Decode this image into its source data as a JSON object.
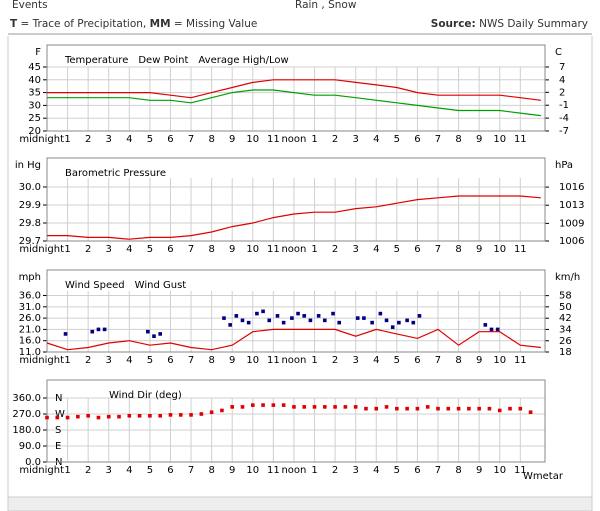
{
  "header": {
    "events_label": "Events",
    "events_value": "Rain , Snow",
    "note_key_1": "T",
    "note_text_1": "= Trace of Precipitation,",
    "note_key_2": "MM",
    "note_text_2": "= Missing Value",
    "source_label": "Source:",
    "source_value": "NWS Daily Summary"
  },
  "chart_data": [
    {
      "type": "line",
      "y_unit": "F",
      "y2_unit": "C",
      "xlim": [
        0,
        24.2
      ],
      "xticks": [
        {
          "value": 0,
          "label": "midnight"
        },
        1,
        2,
        3,
        4,
        5,
        6,
        7,
        8,
        9,
        10,
        11,
        {
          "value": 12,
          "label": "noon"
        },
        {
          "value": 13,
          "label": "1"
        },
        {
          "value": 14,
          "label": "2"
        },
        {
          "value": 15,
          "label": "3"
        },
        {
          "value": 16,
          "label": "4"
        },
        {
          "value": 17,
          "label": "5"
        },
        {
          "value": 18,
          "label": "6"
        },
        {
          "value": 19,
          "label": "7"
        },
        {
          "value": 20,
          "label": "8"
        },
        {
          "value": 21,
          "label": "9"
        },
        {
          "value": 22,
          "label": "10"
        },
        {
          "value": 23,
          "label": "11"
        }
      ],
      "ylim": [
        20,
        45
      ],
      "yticks": [
        20,
        25,
        30,
        35,
        40,
        45
      ],
      "y2lim": [
        -6.7,
        7.2
      ],
      "y2ticks": [
        {
          "value": -6.7,
          "label": "-7"
        },
        {
          "value": -3.9,
          "label": "-4"
        },
        {
          "value": -1.1,
          "label": "-1"
        },
        {
          "value": 1.7,
          "label": "2"
        },
        {
          "value": 4.4,
          "label": "4"
        },
        {
          "value": 7.2,
          "label": "7"
        }
      ],
      "x": [
        0,
        1,
        2,
        3,
        4,
        5,
        6,
        7,
        8,
        9,
        10,
        11,
        12,
        13,
        14,
        15,
        16,
        17,
        18,
        19,
        20,
        21,
        22,
        23,
        24
      ],
      "grid": true,
      "series": [
        {
          "name": "Temperature",
          "color": "#e00000",
          "kind": "line",
          "values": [
            35,
            35,
            35,
            35,
            35,
            35,
            34,
            33,
            35,
            37,
            39,
            40,
            40,
            40,
            40,
            39,
            38,
            37,
            35,
            34,
            34,
            34,
            34,
            33,
            32
          ]
        },
        {
          "name": "Dew Point",
          "color": "#00a000",
          "kind": "line",
          "values": [
            33,
            33,
            33,
            33,
            33,
            32,
            32,
            31,
            33,
            35,
            36,
            36,
            35,
            34,
            34,
            33,
            32,
            31,
            30,
            29,
            28,
            28,
            28,
            27,
            26
          ]
        },
        {
          "name": "Average High/Low",
          "color": "#000099",
          "kind": "line",
          "values": [
            null,
            null,
            null,
            null,
            null,
            null,
            null,
            null,
            null,
            null,
            null,
            null,
            null,
            null,
            null,
            null,
            null,
            null,
            null,
            null,
            null,
            null,
            null,
            null,
            null
          ]
        }
      ]
    },
    {
      "type": "line",
      "y_unit": "in Hg",
      "y2_unit": "hPa",
      "xlim": [
        0,
        24.2
      ],
      "xticks": [
        {
          "value": 0,
          "label": "midnight"
        },
        1,
        2,
        3,
        4,
        5,
        6,
        7,
        8,
        9,
        10,
        11,
        {
          "value": 12,
          "label": "noon"
        },
        {
          "value": 13,
          "label": "1"
        },
        {
          "value": 14,
          "label": "2"
        },
        {
          "value": 15,
          "label": "3"
        },
        {
          "value": 16,
          "label": "4"
        },
        {
          "value": 17,
          "label": "5"
        },
        {
          "value": 18,
          "label": "6"
        },
        {
          "value": 19,
          "label": "7"
        },
        {
          "value": 20,
          "label": "8"
        },
        {
          "value": 21,
          "label": "9"
        },
        {
          "value": 22,
          "label": "10"
        },
        {
          "value": 23,
          "label": "11"
        }
      ],
      "ylim": [
        29.7,
        30.05
      ],
      "yticks": [
        29.7,
        29.8,
        29.9,
        {
          "value": 30,
          "label": "30.0"
        }
      ],
      "y2lim": [
        1005.8,
        1017.6
      ],
      "y2ticks": [
        {
          "value": 1005.8,
          "label": "1006"
        },
        {
          "value": 1009.1,
          "label": "1009"
        },
        {
          "value": 1012.5,
          "label": "1013"
        },
        {
          "value": 1015.9,
          "label": "1016"
        }
      ],
      "x": [
        0,
        1,
        2,
        3,
        4,
        5,
        6,
        7,
        8,
        9,
        10,
        11,
        12,
        13,
        14,
        15,
        16,
        17,
        18,
        19,
        20,
        21,
        22,
        23,
        24
      ],
      "grid": true,
      "series": [
        {
          "name": "Barometric Pressure",
          "color": "#e00000",
          "kind": "line",
          "values": [
            29.73,
            29.73,
            29.72,
            29.72,
            29.71,
            29.72,
            29.72,
            29.73,
            29.75,
            29.78,
            29.8,
            29.83,
            29.85,
            29.86,
            29.86,
            29.88,
            29.89,
            29.91,
            29.93,
            29.94,
            29.95,
            29.95,
            29.95,
            29.95,
            29.94
          ]
        }
      ]
    },
    {
      "type": "line",
      "y_unit": "mph",
      "y2_unit": "km/h",
      "xlim": [
        0,
        24.2
      ],
      "xticks": [
        {
          "value": 0,
          "label": "midnight"
        },
        1,
        2,
        3,
        4,
        5,
        6,
        7,
        8,
        9,
        10,
        11,
        {
          "value": 12,
          "label": "noon"
        },
        {
          "value": 13,
          "label": "1"
        },
        {
          "value": 14,
          "label": "2"
        },
        {
          "value": 15,
          "label": "3"
        },
        {
          "value": 16,
          "label": "4"
        },
        {
          "value": 17,
          "label": "5"
        },
        {
          "value": 18,
          "label": "6"
        },
        {
          "value": 19,
          "label": "7"
        },
        {
          "value": 20,
          "label": "8"
        },
        {
          "value": 21,
          "label": "9"
        },
        {
          "value": 22,
          "label": "10"
        },
        {
          "value": 23,
          "label": "11"
        }
      ],
      "ylim": [
        11,
        38
      ],
      "yticks": [
        {
          "value": 11,
          "label": "11.0"
        },
        {
          "value": 16,
          "label": "16.0"
        },
        {
          "value": 21,
          "label": "21.0"
        },
        {
          "value": 26,
          "label": "26.0"
        },
        {
          "value": 31,
          "label": "31.0"
        },
        {
          "value": 36,
          "label": "36.0"
        }
      ],
      "y2lim": [
        17.7,
        61.2
      ],
      "y2ticks": [
        {
          "value": 17.7,
          "label": "18"
        },
        {
          "value": 25.7,
          "label": "26"
        },
        {
          "value": 33.8,
          "label": "34"
        },
        {
          "value": 41.8,
          "label": "42"
        },
        {
          "value": 49.9,
          "label": "50"
        },
        {
          "value": 57.9,
          "label": "58"
        }
      ],
      "x": [
        0,
        1,
        2,
        3,
        4,
        5,
        6,
        7,
        8,
        9,
        10,
        11,
        12,
        13,
        14,
        15,
        16,
        17,
        18,
        19,
        20,
        21,
        22,
        23,
        24
      ],
      "grid": true,
      "series": [
        {
          "name": "Wind Speed",
          "color": "#e00000",
          "kind": "line",
          "values": [
            15,
            12,
            13,
            15,
            16,
            14,
            15,
            13,
            12,
            14,
            20,
            21,
            21,
            21,
            21,
            18,
            21,
            19,
            17,
            21,
            14,
            20,
            20,
            14,
            13
          ]
        },
        {
          "name": "Wind Gust",
          "color": "#000080",
          "kind": "points",
          "x": [
            0.9,
            2.2,
            2.5,
            2.8,
            4.9,
            5.2,
            5.5,
            8.6,
            8.9,
            9.2,
            9.5,
            9.8,
            10.2,
            10.5,
            10.8,
            11.2,
            11.5,
            11.9,
            12.2,
            12.5,
            12.8,
            13.2,
            13.5,
            13.9,
            14.2,
            15.1,
            15.4,
            15.8,
            16.2,
            16.5,
            16.8,
            17.1,
            17.5,
            17.8,
            18.1,
            21.3,
            21.6,
            21.9
          ],
          "values": [
            19,
            20,
            21,
            21,
            20,
            18,
            19,
            26,
            23,
            27,
            25,
            24,
            28,
            29,
            25,
            27,
            24,
            26,
            28,
            27,
            25,
            27,
            25,
            28,
            24,
            26,
            26,
            24,
            28,
            25,
            22,
            24,
            25,
            24,
            27,
            23,
            21,
            21
          ]
        }
      ]
    },
    {
      "type": "scatter",
      "xlim": [
        0,
        24.2
      ],
      "xticks": [
        {
          "value": 0,
          "label": "midnight"
        },
        1,
        2,
        3,
        4,
        5,
        6,
        7,
        8,
        9,
        10,
        11,
        {
          "value": 12,
          "label": "noon"
        },
        {
          "value": 13,
          "label": "1"
        },
        {
          "value": 14,
          "label": "2"
        },
        {
          "value": 15,
          "label": "3"
        },
        {
          "value": 16,
          "label": "4"
        },
        {
          "value": 17,
          "label": "5"
        },
        {
          "value": 18,
          "label": "6"
        },
        {
          "value": 19,
          "label": "7"
        },
        {
          "value": 20,
          "label": "8"
        },
        {
          "value": 21,
          "label": "9"
        },
        {
          "value": 22,
          "label": "10"
        },
        {
          "value": 23,
          "label": "11"
        }
      ],
      "ylim": [
        0,
        360
      ],
      "yticks": [
        {
          "value": 0,
          "label": "0.0"
        },
        {
          "value": 90,
          "label": "90.0"
        },
        {
          "value": 180,
          "label": "180.0"
        },
        {
          "value": 270,
          "label": "270.0"
        },
        {
          "value": 360,
          "label": "360.0"
        }
      ],
      "compass_ticks": [
        {
          "value": 360,
          "label": "N"
        },
        {
          "value": 270,
          "label": "W"
        },
        {
          "value": 180,
          "label": "S"
        },
        {
          "value": 90,
          "label": "E"
        },
        {
          "value": 0,
          "label": "N"
        }
      ],
      "annotation": "Wmetar",
      "grid": true,
      "series": [
        {
          "name": "Wind Dir (deg)",
          "color": "#e00000",
          "kind": "points",
          "x": [
            0,
            0.5,
            1,
            1.5,
            2,
            2.5,
            3,
            3.5,
            4,
            4.5,
            5,
            5.5,
            6,
            6.5,
            7,
            7.5,
            8,
            8.5,
            9,
            9.5,
            10,
            10.5,
            11,
            11.5,
            12,
            12.5,
            13,
            13.5,
            14,
            14.5,
            15,
            15.5,
            16,
            16.5,
            17,
            17.5,
            18,
            18.5,
            19,
            19.5,
            20,
            20.5,
            21,
            21.5,
            22,
            22.5,
            23,
            23.5
          ],
          "values": [
            250,
            250,
            250,
            255,
            260,
            250,
            255,
            255,
            260,
            260,
            260,
            260,
            265,
            265,
            265,
            270,
            280,
            290,
            310,
            310,
            320,
            320,
            320,
            320,
            310,
            310,
            310,
            310,
            310,
            310,
            310,
            300,
            300,
            310,
            300,
            300,
            300,
            310,
            300,
            300,
            300,
            300,
            300,
            300,
            290,
            300,
            300,
            280
          ]
        }
      ]
    }
  ]
}
